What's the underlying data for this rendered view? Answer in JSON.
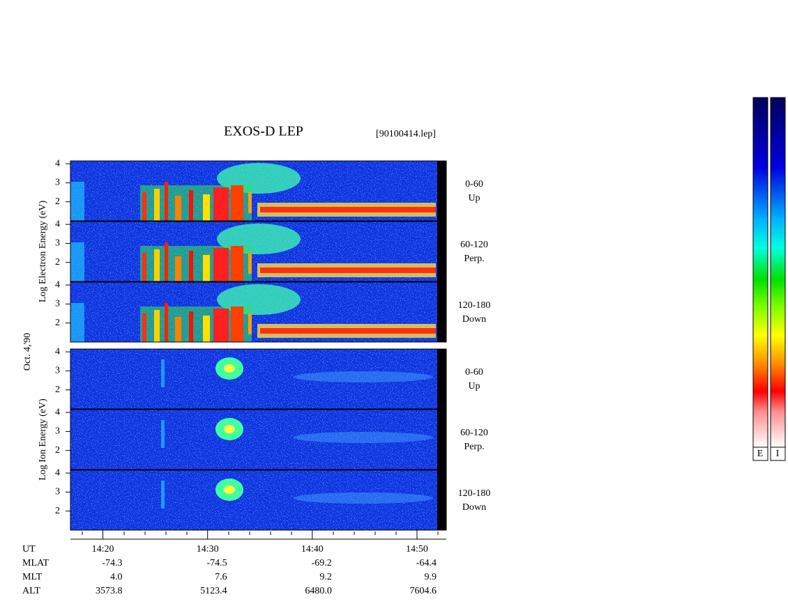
{
  "title": "EXOS-D LEP",
  "file": "[90100414.lep]",
  "date_label": "Oct. 4,'90",
  "ylim": [
    1,
    4.15
  ],
  "yticks": [
    2,
    3,
    4
  ],
  "xlim": [
    856.9,
    892.8
  ],
  "xticks": [
    {
      "value": 860,
      "label": "14:20"
    },
    {
      "value": 870,
      "label": "14:30"
    },
    {
      "value": 880,
      "label": "14:40"
    },
    {
      "value": 890,
      "label": "14:50"
    }
  ],
  "groups": [
    {
      "ylabel": "Log Electron Energy (eV)",
      "panels": [
        {
          "label": "0-60",
          "sub": "Up"
        },
        {
          "label": "60-120",
          "sub": "Perp."
        },
        {
          "label": "120-180",
          "sub": "Down"
        }
      ]
    },
    {
      "ylabel": "Log Ion Energy (eV)",
      "panels": [
        {
          "label": "0-60",
          "sub": "Up"
        },
        {
          "label": "60-120",
          "sub": "Perp."
        },
        {
          "label": "120-180",
          "sub": "Down"
        }
      ]
    }
  ],
  "orbit_table": {
    "labels": [
      "UT",
      "MLAT",
      "MLT",
      "ALT"
    ],
    "rows": [
      [
        "14:20",
        "14:30",
        "14:40",
        "14:50"
      ],
      [
        "-74.3",
        "-74.5",
        "-69.2",
        "-64.4"
      ],
      [
        "4.0",
        "7.6",
        "9.2",
        "9.9"
      ],
      [
        "3573.8",
        "5123.4",
        "6480.0",
        "7604.6"
      ]
    ]
  },
  "colorbar_labels": [
    "E",
    "I"
  ]
}
